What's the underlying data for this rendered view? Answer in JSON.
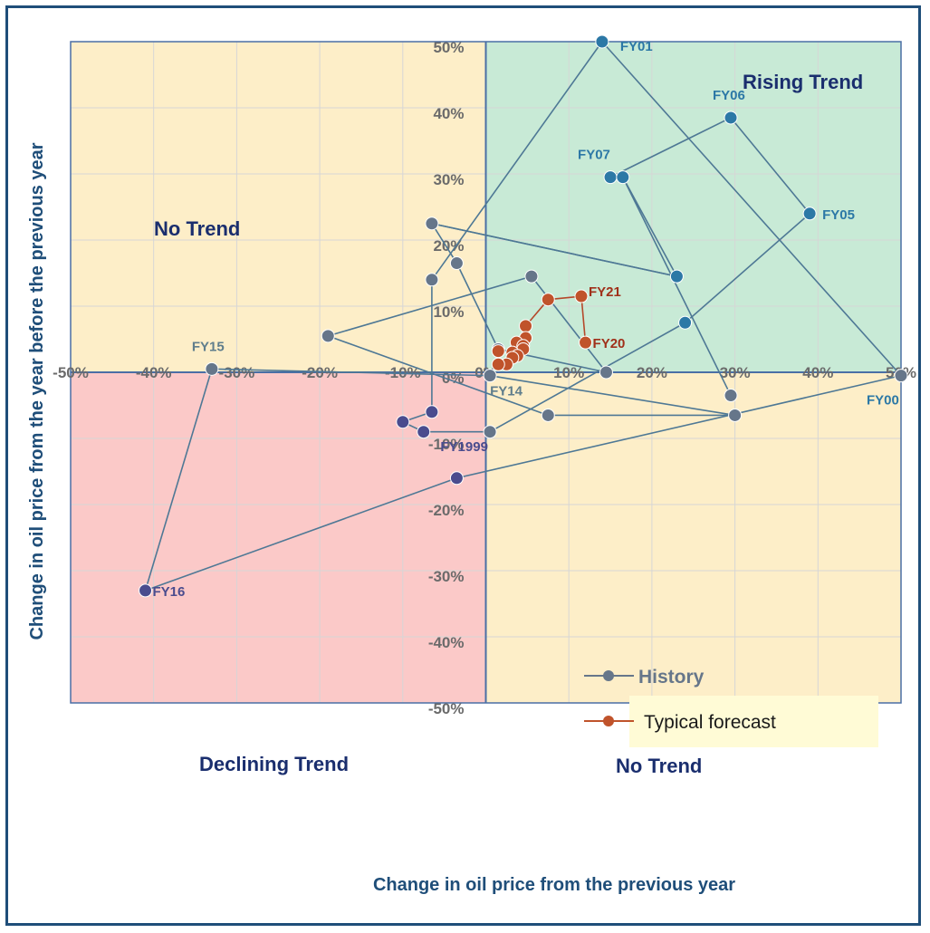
{
  "chart_data": {
    "type": "scatter",
    "title": "",
    "xlabel": "Change in oil price from the previous year",
    "ylabel": "Change  in oil price from the year before the previous year",
    "xlim": [
      -0.5,
      0.5
    ],
    "ylim": [
      -0.5,
      0.5
    ],
    "x_ticks": [
      -0.5,
      -0.4,
      -0.3,
      -0.2,
      -0.1,
      0,
      0.1,
      0.2,
      0.3,
      0.4,
      0.5
    ],
    "y_ticks": [
      -0.5,
      -0.4,
      -0.3,
      -0.2,
      -0.1,
      0,
      0.1,
      0.2,
      0.3,
      0.4,
      0.5
    ],
    "x_tick_labels": [
      "-50%",
      "-40%",
      "-30%",
      "-20%",
      "-10%",
      "0%",
      "10%",
      "20%",
      "30%",
      "40%",
      "50%"
    ],
    "y_tick_labels": [
      "-50%",
      "-40%",
      "-30%",
      "-20%",
      "-10%",
      "0%",
      "10%",
      "20%",
      "30%",
      "40%",
      "50%"
    ],
    "grid": true,
    "legend_position": "lower-right",
    "regions": [
      {
        "name": "Rising Trend",
        "color": "#c8ead6"
      },
      {
        "name": "No Trend",
        "color": "#fdeec8"
      },
      {
        "name": "Declining Trend",
        "color": "#fbc9c8"
      },
      {
        "name": "No Trend",
        "color": "#fdeec8"
      }
    ],
    "series": [
      {
        "name": "History",
        "color": "#66768a",
        "points": [
          {
            "x": -0.035,
            "y": -0.16,
            "label": "FY1999"
          },
          {
            "x": 0.5,
            "y": -0.005,
            "label": "FY00"
          },
          {
            "x": 0.14,
            "y": 0.5,
            "label": "FY01"
          },
          {
            "x": -0.065,
            "y": 0.14
          },
          {
            "x": -0.065,
            "y": -0.06
          },
          {
            "x": -0.1,
            "y": -0.075
          },
          {
            "x": -0.075,
            "y": -0.09
          },
          {
            "x": 0.005,
            "y": -0.09
          },
          {
            "x": 0.24,
            "y": 0.075
          },
          {
            "x": 0.39,
            "y": 0.24,
            "label": "FY05"
          },
          {
            "x": 0.295,
            "y": 0.385,
            "label": "FY06"
          },
          {
            "x": 0.15,
            "y": 0.295,
            "label": "FY07"
          },
          {
            "x": 0.165,
            "y": 0.295
          },
          {
            "x": 0.23,
            "y": 0.145
          },
          {
            "x": -0.065,
            "y": 0.225
          },
          {
            "x": -0.035,
            "y": 0.165
          },
          {
            "x": 0.145,
            "y": 0.0
          },
          {
            "x": 0.055,
            "y": 0.145
          },
          {
            "x": -0.19,
            "y": 0.055
          },
          {
            "x": 0.075,
            "y": -0.065
          },
          {
            "x": 0.3,
            "y": -0.065
          },
          {
            "x": 0.005,
            "y": -0.005,
            "label": "FY14"
          },
          {
            "x": -0.33,
            "y": 0.005,
            "label": "FY15"
          },
          {
            "x": -0.41,
            "y": -0.33,
            "label": "FY16"
          },
          {
            "x": 0.015,
            "y": 0.035
          },
          {
            "x": 0.295,
            "y": -0.035
          }
        ],
        "segments": [
          [
            0,
            1
          ],
          [
            1,
            2
          ],
          [
            2,
            3
          ],
          [
            3,
            4
          ],
          [
            4,
            5
          ],
          [
            5,
            6
          ],
          [
            6,
            7
          ],
          [
            7,
            8
          ],
          [
            8,
            9
          ],
          [
            9,
            10
          ],
          [
            10,
            11
          ],
          [
            11,
            12
          ],
          [
            12,
            13
          ],
          [
            13,
            14
          ],
          [
            14,
            13
          ],
          [
            15,
            14
          ],
          [
            15,
            24
          ],
          [
            24,
            16
          ],
          [
            16,
            17
          ],
          [
            17,
            18
          ],
          [
            18,
            19
          ],
          [
            19,
            20
          ],
          [
            20,
            21
          ],
          [
            21,
            22
          ],
          [
            22,
            23
          ],
          [
            23,
            0
          ],
          [
            12,
            25
          ]
        ]
      },
      {
        "name": "Typical forecast",
        "color": "#c0532b",
        "points": [
          {
            "x": 0.12,
            "y": 0.045,
            "label": "FY20"
          },
          {
            "x": 0.115,
            "y": 0.115,
            "label": "FY21"
          },
          {
            "x": 0.075,
            "y": 0.11
          },
          {
            "x": 0.048,
            "y": 0.07
          },
          {
            "x": 0.048,
            "y": 0.052
          },
          {
            "x": 0.037,
            "y": 0.045
          },
          {
            "x": 0.045,
            "y": 0.04
          },
          {
            "x": 0.045,
            "y": 0.035
          },
          {
            "x": 0.032,
            "y": 0.03
          },
          {
            "x": 0.038,
            "y": 0.025
          },
          {
            "x": 0.032,
            "y": 0.022
          },
          {
            "x": 0.025,
            "y": 0.012
          },
          {
            "x": 0.015,
            "y": 0.012
          },
          {
            "x": 0.015,
            "y": 0.032
          }
        ]
      }
    ],
    "legend": [
      "History",
      "Typical forecast"
    ],
    "annotations": [
      "Rising Trend",
      "No Trend",
      "Declining Trend",
      "No Trend"
    ]
  }
}
